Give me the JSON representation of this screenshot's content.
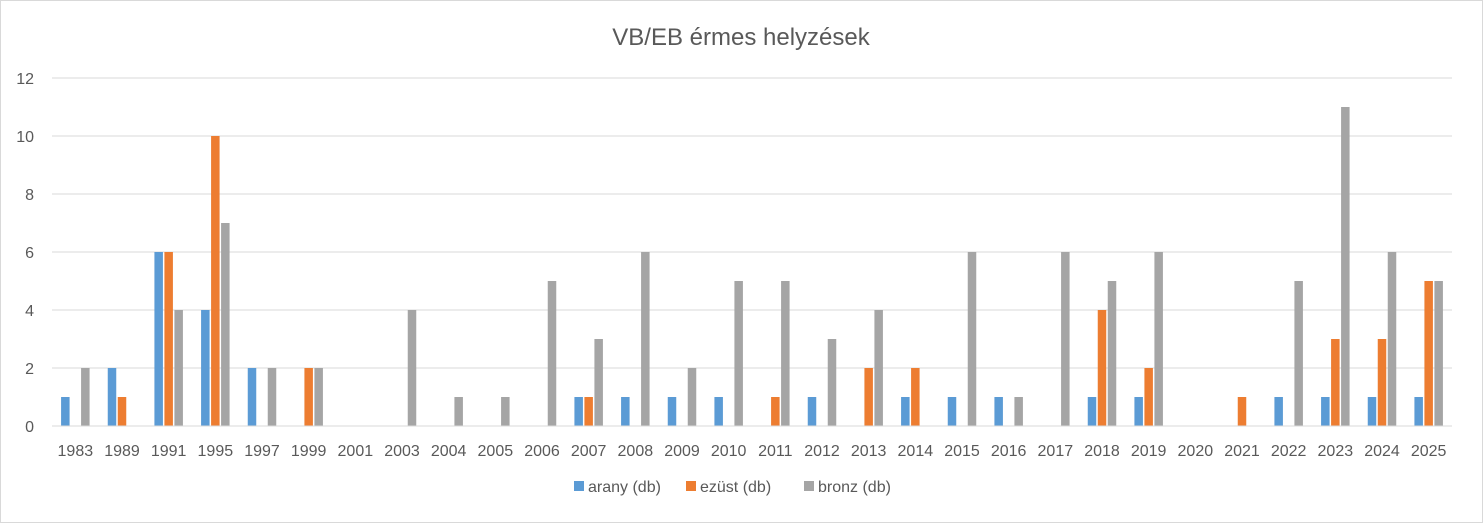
{
  "chart_data": {
    "type": "bar",
    "title": "VB/EB érmes helyzések",
    "xlabel": "",
    "ylabel": "",
    "ylim": [
      0,
      12
    ],
    "yticks": [
      0,
      2,
      4,
      6,
      8,
      10,
      12
    ],
    "grid": true,
    "legend_position": "bottom",
    "categories": [
      "1983",
      "1989",
      "1991",
      "1995",
      "1997",
      "1999",
      "2001",
      "2003",
      "2004",
      "2005",
      "2006",
      "2007",
      "2008",
      "2009",
      "2010",
      "2011",
      "2012",
      "2013",
      "2014",
      "2015",
      "2016",
      "2017",
      "2018",
      "2019",
      "2020",
      "2021",
      "2022",
      "2023",
      "2024",
      "2025"
    ],
    "series": [
      {
        "name": "arany (db)",
        "color": "#5b9bd5",
        "values": [
          1,
          2,
          6,
          4,
          2,
          0,
          0,
          0,
          0,
          0,
          0,
          1,
          1,
          1,
          1,
          0,
          1,
          0,
          1,
          1,
          1,
          0,
          1,
          1,
          0,
          0,
          1,
          1,
          1,
          1
        ]
      },
      {
        "name": "ezüst (db)",
        "color": "#ed7d31",
        "values": [
          0,
          1,
          6,
          10,
          0,
          2,
          0,
          0,
          0,
          0,
          0,
          1,
          0,
          0,
          0,
          1,
          0,
          2,
          2,
          0,
          0,
          0,
          4,
          2,
          0,
          1,
          0,
          3,
          3,
          5
        ]
      },
      {
        "name": "bronz (db)",
        "color": "#a5a5a5",
        "values": [
          2,
          0,
          4,
          7,
          2,
          2,
          0,
          4,
          1,
          1,
          5,
          3,
          6,
          2,
          5,
          5,
          3,
          4,
          0,
          6,
          1,
          6,
          5,
          6,
          0,
          0,
          5,
          11,
          6,
          5
        ]
      }
    ]
  }
}
